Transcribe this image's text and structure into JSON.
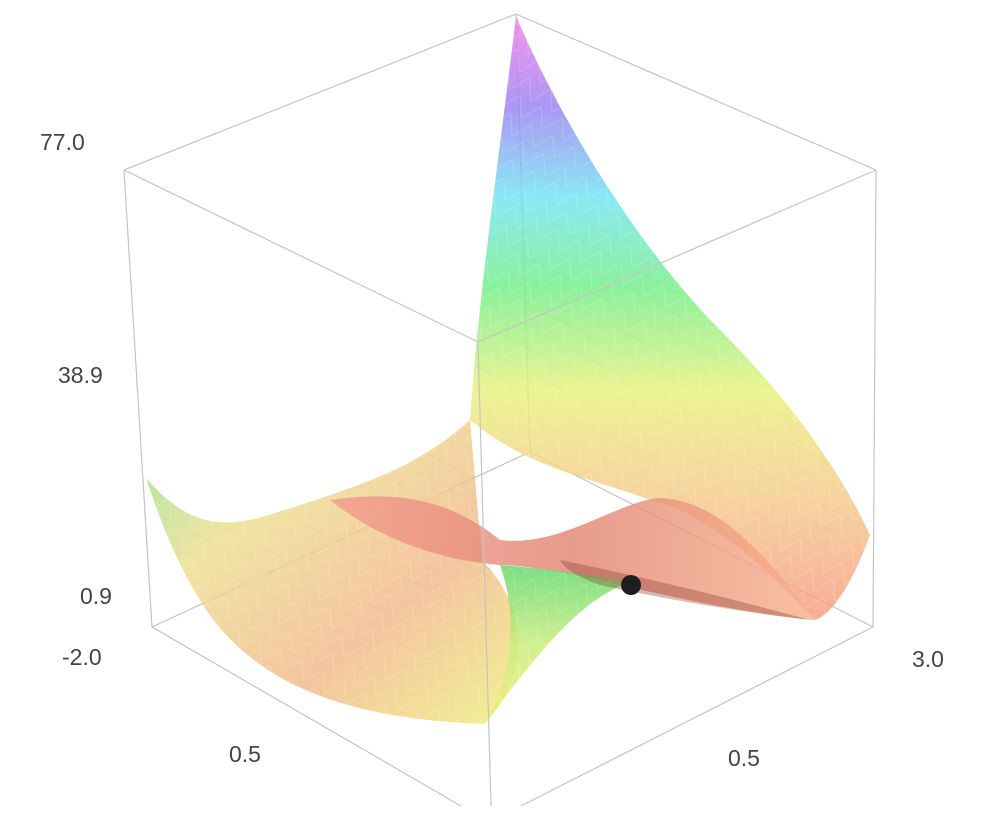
{
  "chart_data": {
    "type": "surface3d",
    "title": "",
    "xlabel": "",
    "ylabel": "",
    "zlabel": "",
    "z_axis_ticks": [
      "77.0",
      "38.9",
      "0.9",
      "-2.0"
    ],
    "x_axis_ticks": [
      "0.5"
    ],
    "y_axis_ticks": [
      "0.5",
      "3.0"
    ],
    "zlim": [
      -2.0,
      77.0
    ],
    "colormap": "rainbow (red low to magenta high)",
    "surface_opacity": 0.75,
    "marked_point": {
      "label": "",
      "color": "#1e1e1e"
    },
    "grid": false,
    "legend": "none"
  }
}
